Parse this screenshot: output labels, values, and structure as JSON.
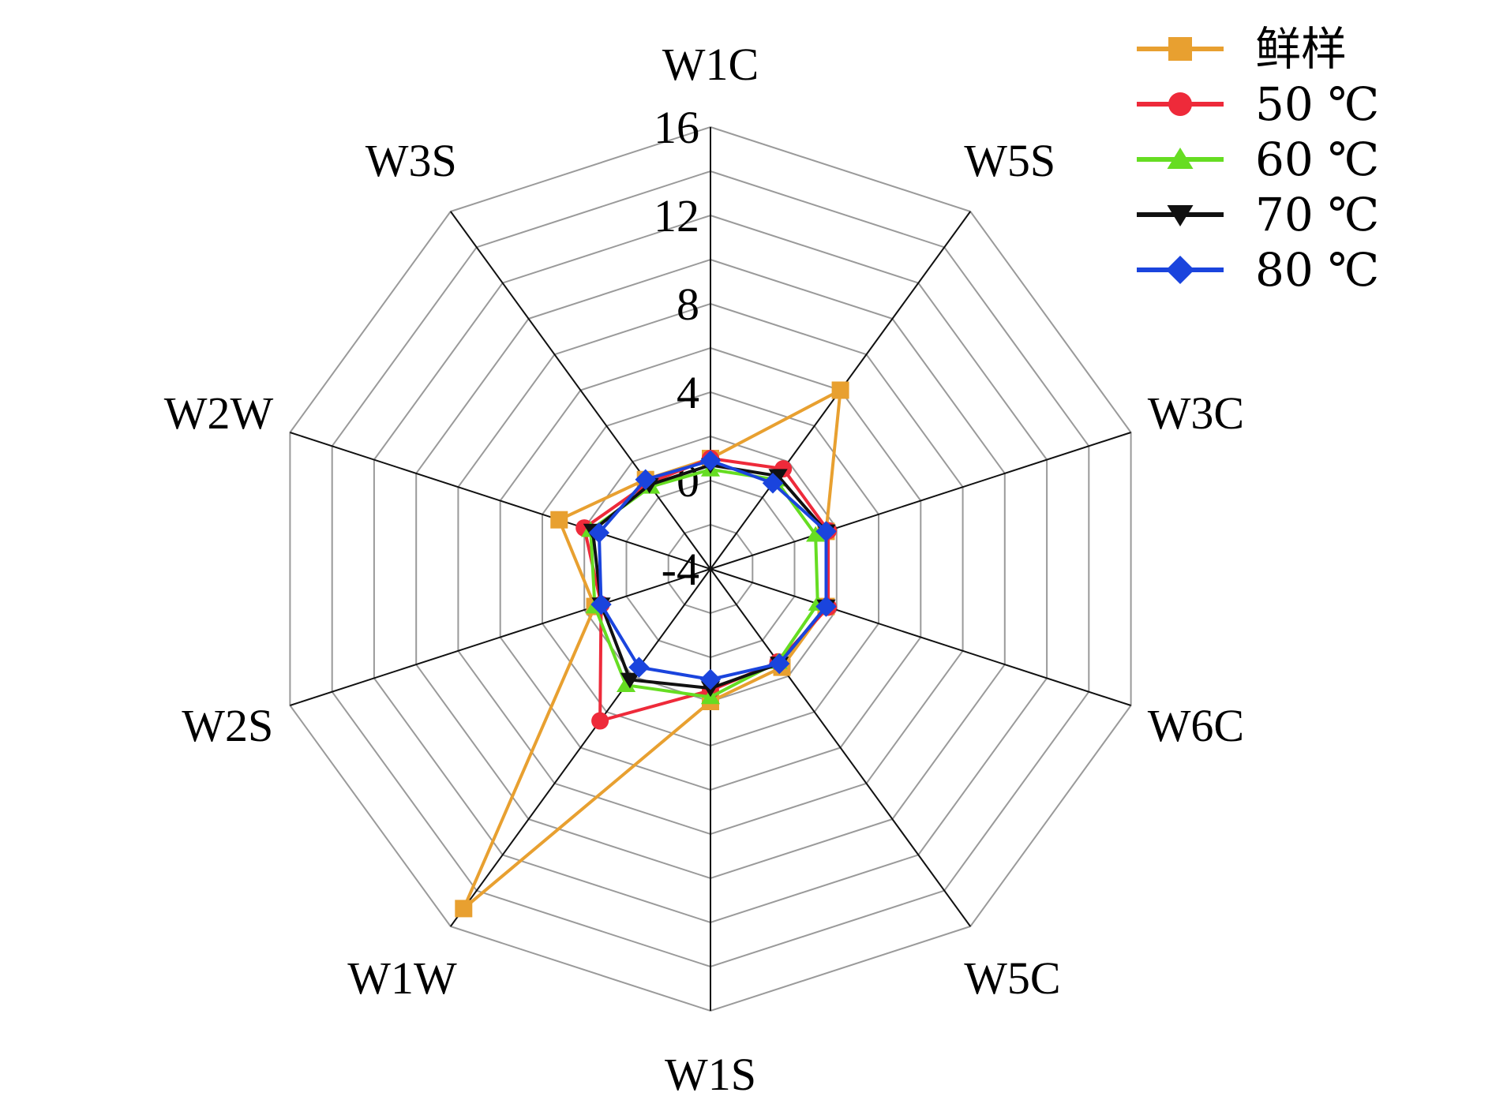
{
  "chart_data": {
    "type": "radar",
    "axes": [
      "W1C",
      "W5S",
      "W3C",
      "W6C",
      "W5C",
      "W1S",
      "W1W",
      "W2S",
      "W2W",
      "W3S"
    ],
    "range": [
      -4,
      16
    ],
    "ticks": [
      -4,
      0,
      4,
      8,
      12,
      16
    ],
    "tick_labels": [
      "-4",
      "0",
      "4",
      "8",
      "12",
      "16"
    ],
    "grid_step": 2,
    "legend_position": "top-right",
    "series": [
      {
        "name": "鲜样",
        "color": "#e8a030",
        "marker": "square",
        "values": [
          1.0,
          6.0,
          1.5,
          1.5,
          1.5,
          2.0,
          15.0,
          1.5,
          3.2,
          1.0
        ]
      },
      {
        "name": "50 ℃",
        "color": "#ee2a3a",
        "marker": "circle",
        "values": [
          1.0,
          1.6,
          1.6,
          1.6,
          1.2,
          1.5,
          4.5,
          1.2,
          2.0,
          0.8
        ]
      },
      {
        "name": "60 ℃",
        "color": "#66dd22",
        "marker": "triangle-up",
        "values": [
          0.5,
          1.0,
          1.0,
          1.1,
          1.2,
          1.8,
          2.5,
          1.5,
          1.7,
          0.6
        ]
      },
      {
        "name": "70 ℃",
        "color": "#111111",
        "marker": "triangle-down",
        "values": [
          0.7,
          1.2,
          1.5,
          1.5,
          1.3,
          1.4,
          2.2,
          1.2,
          1.6,
          0.7
        ]
      },
      {
        "name": "80 ℃",
        "color": "#1a44dd",
        "marker": "diamond",
        "values": [
          0.9,
          0.8,
          1.5,
          1.5,
          1.3,
          1.0,
          1.5,
          1.2,
          1.3,
          1.0
        ]
      }
    ]
  }
}
